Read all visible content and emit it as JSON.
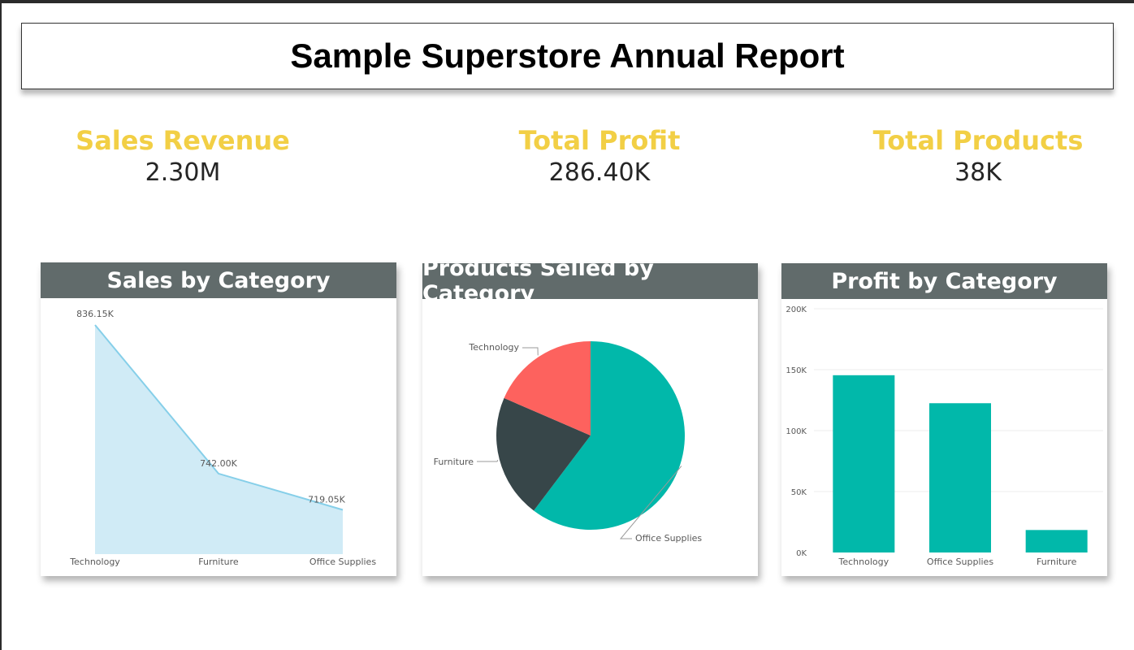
{
  "report": {
    "title": "Sample Superstore Annual Report"
  },
  "kpis": [
    {
      "label": "Sales Revenue",
      "value": "2.30M"
    },
    {
      "label": "Total Profit",
      "value": "286.40K"
    },
    {
      "label": "Total Products",
      "value": "38K"
    }
  ],
  "colors": {
    "kpi_label": "#f2cf45",
    "header_bg": "#616b6b",
    "area_line": "#86cfe9",
    "area_fill": "#d0ebf6",
    "teal": "#01b8aa",
    "dark": "#374649",
    "red": "#fd625e",
    "gridline": "#ececec",
    "axis_text": "#595959"
  },
  "chart_data": [
    {
      "type": "area",
      "title": "Sales by Category",
      "categories": [
        "Technology",
        "Furniture",
        "Office Supplies"
      ],
      "values": [
        836150,
        742000,
        719050
      ],
      "data_labels": [
        "836.15K",
        "742.00K",
        "719.05K"
      ]
    },
    {
      "type": "pie",
      "title": "Products Selled by Category",
      "slices": [
        {
          "label": "Office Supplies",
          "value": 60.3,
          "color": "#01b8aa"
        },
        {
          "label": "Furniture",
          "value": 21.2,
          "color": "#374649"
        },
        {
          "label": "Technology",
          "value": 18.5,
          "color": "#fd625e"
        }
      ]
    },
    {
      "type": "bar",
      "title": "Profit by Category",
      "categories": [
        "Technology",
        "Office Supplies",
        "Furniture"
      ],
      "values": [
        145455,
        122491,
        18451
      ],
      "ylim": [
        0,
        200000
      ],
      "yticks": [
        0,
        50000,
        100000,
        150000,
        200000
      ],
      "ytick_labels": [
        "0K",
        "50K",
        "100K",
        "150K",
        "200K"
      ],
      "grid": true
    }
  ]
}
